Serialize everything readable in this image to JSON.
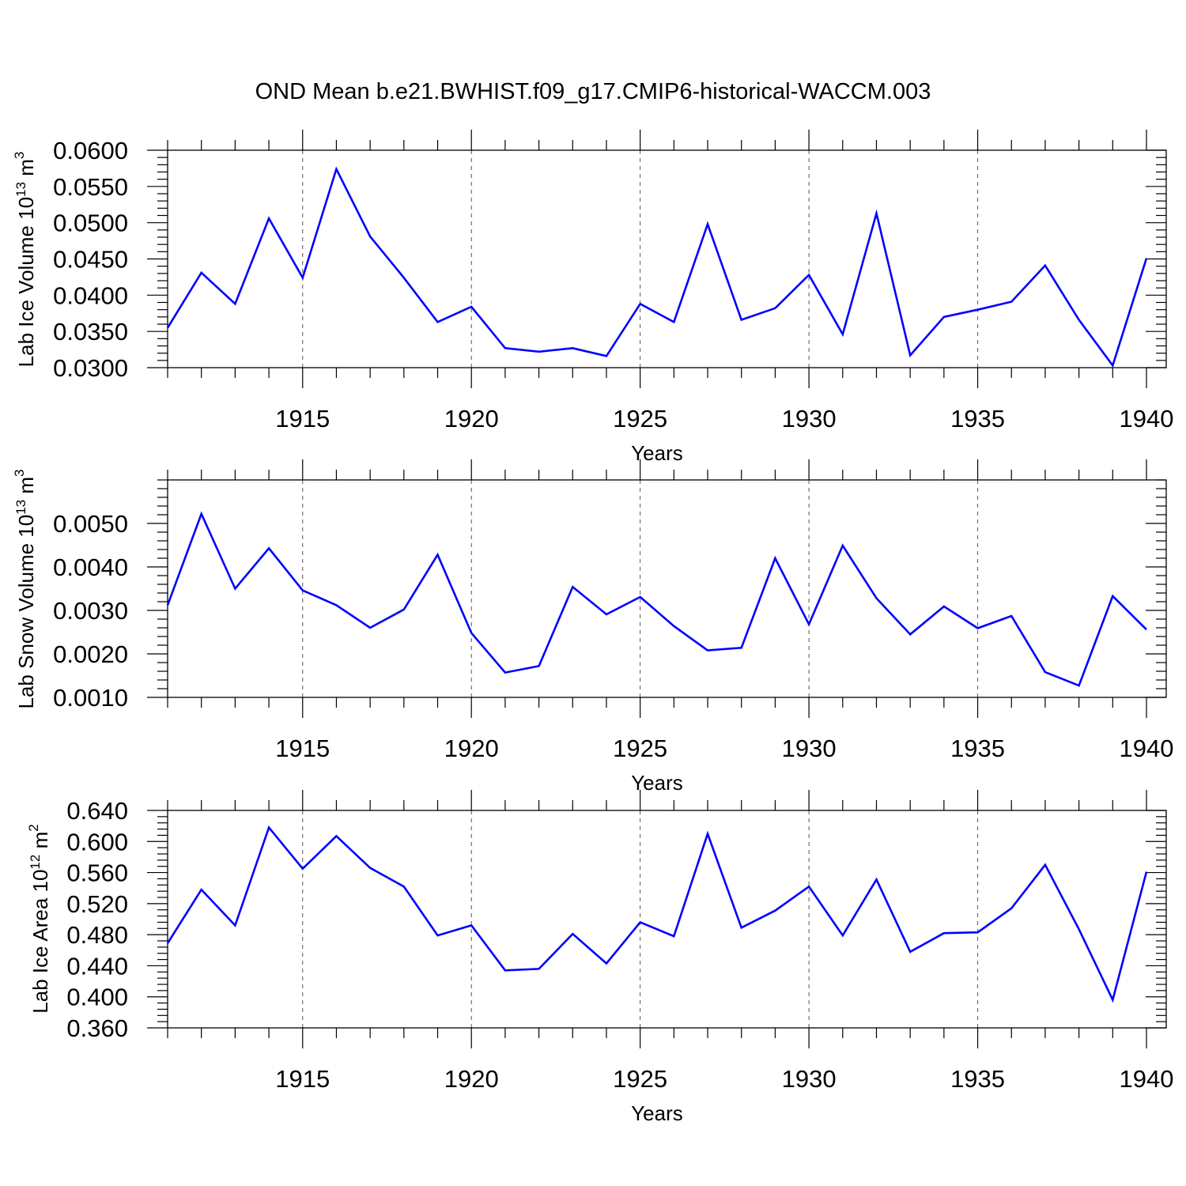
{
  "figure": {
    "title": "OND Mean b.e21.BWHIST.f09_g17.CMIP6-historical-WACCM.003",
    "line_color": "#0000ff"
  },
  "chart_data": [
    {
      "type": "line",
      "xlabel": "Years",
      "ylabel": {
        "text": "Lab Ice Volume 10",
        "exponent": "13",
        "unit": " m",
        "unit_exponent": "3"
      },
      "xlim": [
        1911,
        1940
      ],
      "ylim": [
        0.03,
        0.06
      ],
      "x_ticks": [
        1915,
        1920,
        1925,
        1930,
        1935,
        1940
      ],
      "y_ticks": [
        0.03,
        0.035,
        0.04,
        0.045,
        0.05,
        0.055,
        0.06
      ],
      "y_tick_labels": [
        "0.0300",
        "0.0350",
        "0.0400",
        "0.0450",
        "0.0500",
        "0.0550",
        "0.0600"
      ],
      "grid": "vertical dashed at major x ticks",
      "series": [
        {
          "name": "Lab Ice Volume",
          "x": [
            1911,
            1912,
            1913,
            1914,
            1915,
            1916,
            1917,
            1918,
            1919,
            1920,
            1921,
            1922,
            1923,
            1924,
            1925,
            1926,
            1927,
            1928,
            1929,
            1930,
            1931,
            1932,
            1933,
            1934,
            1935,
            1936,
            1937,
            1938,
            1939,
            1940
          ],
          "values": [
            0.0355,
            0.0431,
            0.0388,
            0.0506,
            0.0424,
            0.0574,
            0.0481,
            0.0424,
            0.0363,
            0.0384,
            0.0327,
            0.0322,
            0.0327,
            0.0316,
            0.0388,
            0.0363,
            0.0498,
            0.0366,
            0.0382,
            0.0428,
            0.0346,
            0.0513,
            0.0317,
            0.037,
            0.038,
            0.0391,
            0.0441,
            0.0366,
            0.0303,
            0.0451
          ]
        }
      ]
    },
    {
      "type": "line",
      "xlabel": "Years",
      "ylabel": {
        "text": "Lab Snow Volume 10",
        "exponent": "13",
        "unit": " m",
        "unit_exponent": "3"
      },
      "xlim": [
        1911,
        1940
      ],
      "ylim": [
        0.001,
        0.006
      ],
      "x_ticks": [
        1915,
        1920,
        1925,
        1930,
        1935,
        1940
      ],
      "y_ticks": [
        0.001,
        0.002,
        0.003,
        0.004,
        0.005
      ],
      "y_tick_labels": [
        "0.0010",
        "0.0020",
        "0.0030",
        "0.0040",
        "0.0050"
      ],
      "grid": "vertical dashed at major x ticks",
      "series": [
        {
          "name": "Lab Snow Volume",
          "x": [
            1911,
            1912,
            1913,
            1914,
            1915,
            1916,
            1917,
            1918,
            1919,
            1920,
            1921,
            1922,
            1923,
            1924,
            1925,
            1926,
            1927,
            1928,
            1929,
            1930,
            1931,
            1932,
            1933,
            1934,
            1935,
            1936,
            1937,
            1938,
            1939,
            1940
          ],
          "values": [
            0.00312,
            0.00522,
            0.0035,
            0.00443,
            0.00346,
            0.00312,
            0.0026,
            0.00302,
            0.00428,
            0.00248,
            0.00157,
            0.00172,
            0.00354,
            0.00291,
            0.00331,
            0.00264,
            0.00208,
            0.00214,
            0.0042,
            0.00268,
            0.00449,
            0.00328,
            0.00245,
            0.00309,
            0.00259,
            0.00287,
            0.00158,
            0.00127,
            0.00333,
            0.00256
          ]
        }
      ]
    },
    {
      "type": "line",
      "xlabel": "Years",
      "ylabel": {
        "text": "Lab Ice Area 10",
        "exponent": "12",
        "unit": " m",
        "unit_exponent": "2"
      },
      "xlim": [
        1911,
        1940
      ],
      "ylim": [
        0.36,
        0.64
      ],
      "x_ticks": [
        1915,
        1920,
        1925,
        1930,
        1935,
        1940
      ],
      "y_ticks": [
        0.36,
        0.4,
        0.44,
        0.48,
        0.52,
        0.56,
        0.6,
        0.64
      ],
      "y_tick_labels": [
        "0.360",
        "0.400",
        "0.440",
        "0.480",
        "0.520",
        "0.560",
        "0.600",
        "0.640"
      ],
      "grid": "vertical dashed at major x ticks",
      "series": [
        {
          "name": "Lab Ice Area",
          "x": [
            1911,
            1912,
            1913,
            1914,
            1915,
            1916,
            1917,
            1918,
            1919,
            1920,
            1921,
            1922,
            1923,
            1924,
            1925,
            1926,
            1927,
            1928,
            1929,
            1930,
            1931,
            1932,
            1933,
            1934,
            1935,
            1936,
            1937,
            1938,
            1939,
            1940
          ],
          "values": [
            0.469,
            0.538,
            0.492,
            0.618,
            0.565,
            0.607,
            0.566,
            0.542,
            0.479,
            0.492,
            0.434,
            0.436,
            0.481,
            0.443,
            0.496,
            0.478,
            0.61,
            0.489,
            0.511,
            0.542,
            0.479,
            0.551,
            0.458,
            0.482,
            0.483,
            0.514,
            0.57,
            0.487,
            0.396,
            0.561
          ]
        }
      ]
    }
  ]
}
